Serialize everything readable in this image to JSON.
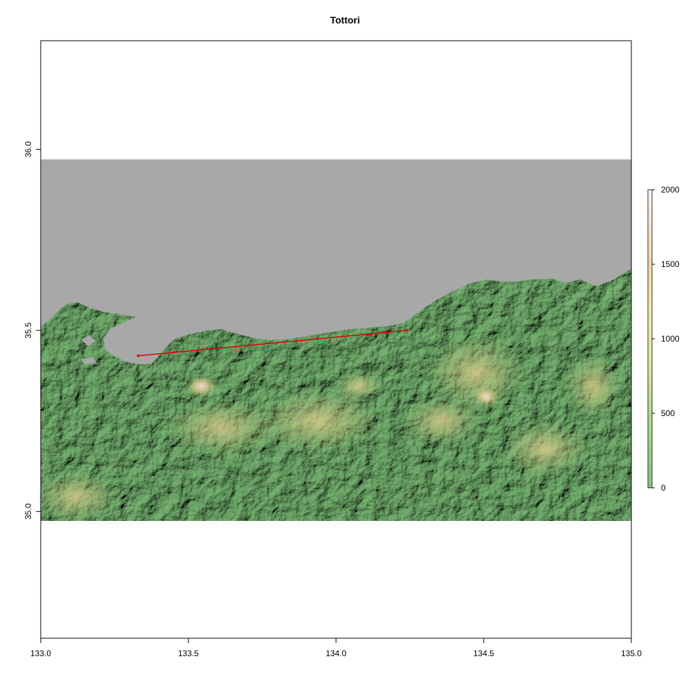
{
  "map": {
    "title": "Tottori",
    "x_ticks": [
      "133.0",
      "133.5",
      "134.0",
      "134.5",
      "135.0"
    ],
    "x_tick_values": [
      133.0,
      133.5,
      134.0,
      134.5,
      135.0
    ],
    "y_ticks": [
      "35.0",
      "35.5",
      "36.0"
    ],
    "y_tick_values": [
      35.0,
      35.5,
      36.0
    ],
    "xlim": [
      133.0,
      135.0
    ],
    "ylim": [
      34.65,
      36.3
    ],
    "raster_extent": {
      "lon": [
        133.0,
        135.0
      ],
      "lat": [
        35.0,
        36.0
      ]
    },
    "colors": {
      "sea": "#a8a8a8",
      "line": "#e00000",
      "terrain": [
        "#6fb06b",
        "#8fc27a",
        "#c7cc84",
        "#d7c98a",
        "#e8c9a8",
        "#f4e6e0"
      ]
    },
    "line": {
      "start": [
        133.33,
        35.43
      ],
      "end": [
        134.24,
        35.5
      ]
    },
    "legend": {
      "labels": [
        "0",
        "500",
        "1000",
        "1500",
        "2000"
      ],
      "values": [
        0,
        500,
        1000,
        1500,
        2000
      ],
      "range": [
        0,
        2000
      ],
      "colors": [
        "#7fc97f",
        "#a8d88a",
        "#d8e89a",
        "#f0f0a0",
        "#f2d8a8",
        "#f7e6d8",
        "#fbf2ee"
      ]
    }
  }
}
